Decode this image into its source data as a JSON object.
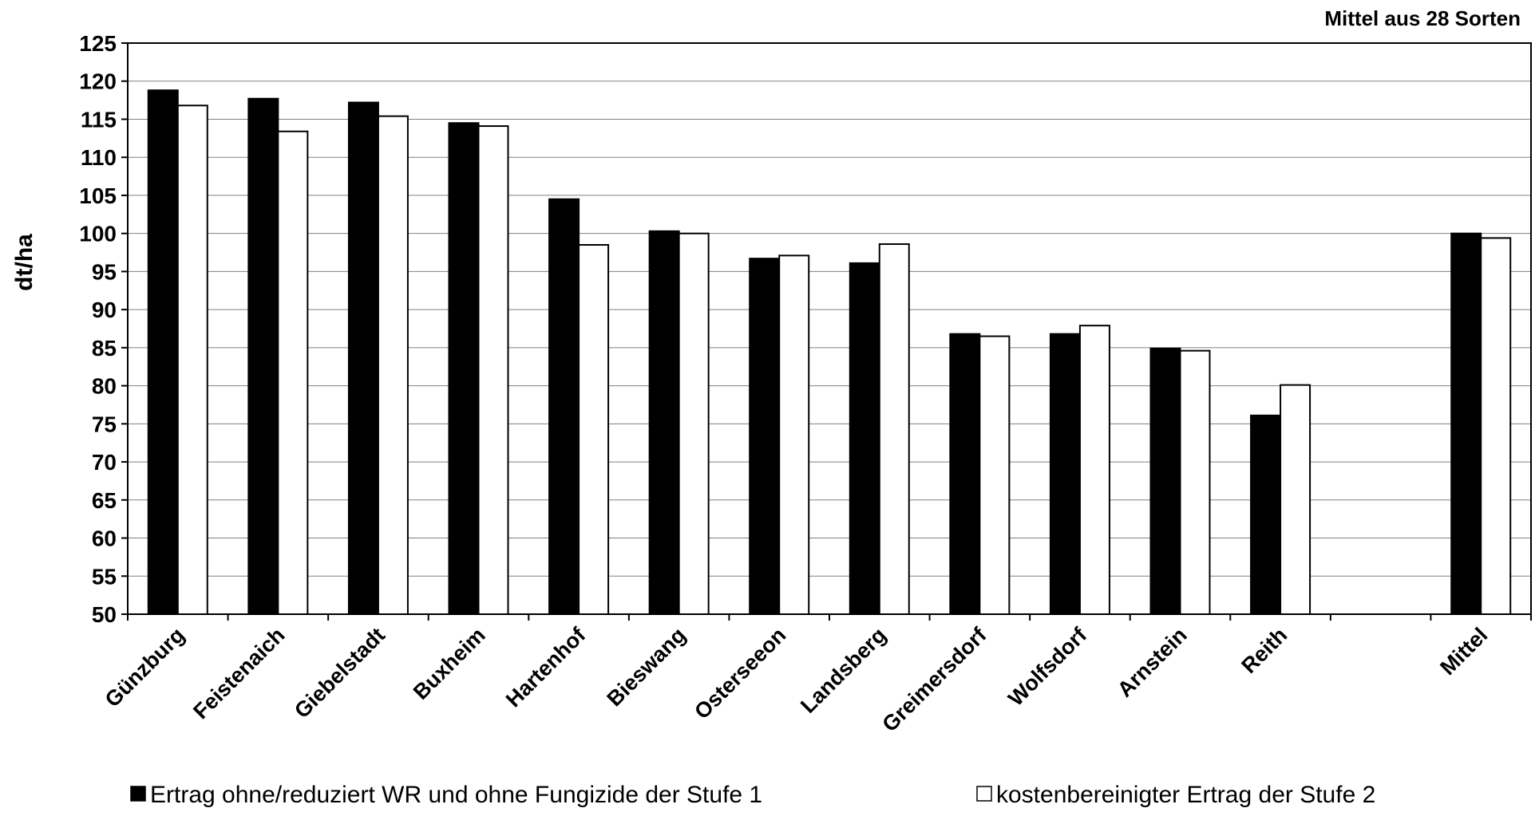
{
  "chart_data": {
    "type": "bar",
    "annotation": "Mittel aus 28 Sorten",
    "ylabel": "dt/ha",
    "ylim": [
      50,
      125
    ],
    "ytick_step": 5,
    "grid": true,
    "categories": [
      "Günzburg",
      "Feistenaich",
      "Giebelstadt",
      "Buxheim",
      "Hartenhof",
      "Bieswang",
      "Osterseeon",
      "Landsberg",
      "Greimersdorf",
      "Wolfsdorf",
      "Arnstein",
      "Reith",
      "",
      "Mittel"
    ],
    "series": [
      {
        "name": "Ertrag ohne/reduziert WR und ohne Fungizide der Stufe 1",
        "color": "#000000",
        "values": [
          118.8,
          117.7,
          117.2,
          114.5,
          104.5,
          100.3,
          96.7,
          96.1,
          86.8,
          86.8,
          84.9,
          76.1,
          null,
          100.0
        ]
      },
      {
        "name": "kostenbereinigter Ertrag der Stufe 2",
        "color": "#ffffff",
        "values": [
          116.8,
          113.4,
          115.4,
          114.1,
          98.5,
          100.0,
          97.1,
          98.6,
          86.5,
          87.9,
          84.6,
          80.1,
          null,
          99.4
        ]
      }
    ],
    "legend_position": "bottom"
  }
}
